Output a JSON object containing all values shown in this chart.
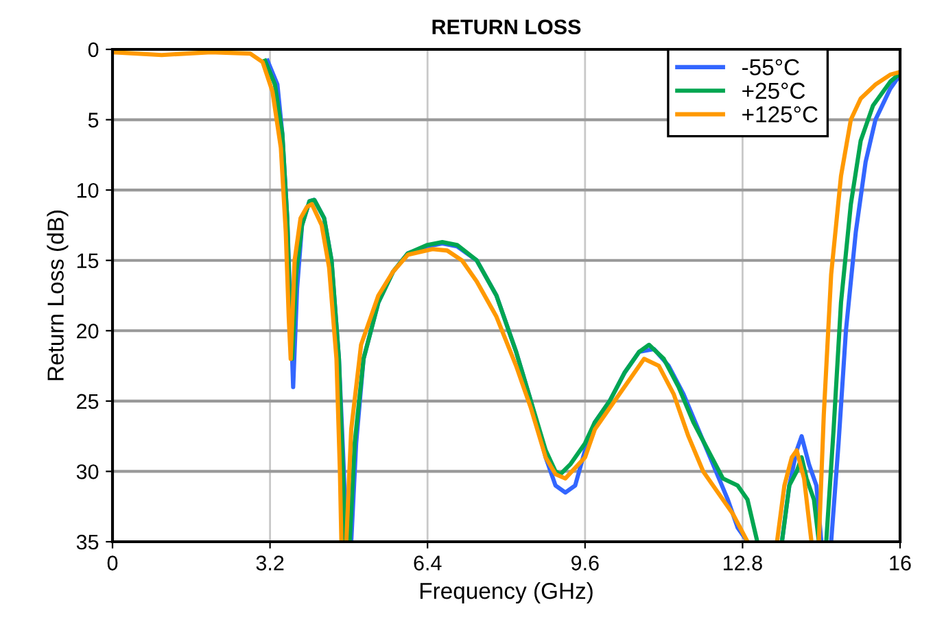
{
  "chart_data": {
    "type": "line",
    "title": "RETURN LOSS",
    "xlabel": "Frequency (GHz)",
    "ylabel": "Return Loss (dB)",
    "xlim": [
      0,
      16
    ],
    "xticks": [
      0,
      3.2,
      6.4,
      9.6,
      12.8,
      16
    ],
    "ylim": [
      35,
      0
    ],
    "yticks": [
      0,
      5,
      10,
      15,
      20,
      25,
      30,
      35
    ],
    "grid": true,
    "legend": "top right",
    "marker": "none",
    "line_style": "solid",
    "series": [
      {
        "name": "-55°C",
        "color": "#3366ff",
        "x": [
          3.15,
          3.35,
          3.45,
          3.55,
          3.62,
          3.67,
          3.75,
          3.85,
          4.0,
          4.1,
          4.3,
          4.45,
          4.6,
          4.7,
          4.75,
          4.8,
          4.85,
          4.95,
          5.1,
          5.4,
          5.7,
          6.0,
          6.4,
          6.7,
          7.0,
          7.4,
          7.8,
          8.2,
          8.5,
          8.8,
          9.0,
          9.2,
          9.4,
          9.6,
          9.8,
          10.1,
          10.4,
          10.7,
          11.0,
          11.3,
          11.6,
          11.9,
          12.2,
          12.5,
          12.7,
          12.9,
          13.05,
          13.6,
          13.75,
          13.9,
          14.0,
          14.15,
          14.3,
          14.4,
          14.5,
          14.6,
          14.75,
          14.9,
          15.1,
          15.3,
          15.5,
          15.8,
          16
        ],
        "values": [
          0.8,
          2.5,
          6,
          12,
          19,
          24,
          17,
          12.5,
          10.8,
          10.7,
          12,
          15,
          22,
          30,
          35,
          null,
          35,
          28,
          22,
          18,
          15.8,
          14.5,
          14,
          13.8,
          14,
          15,
          17.5,
          21.5,
          25,
          29,
          31,
          31.5,
          31,
          28.5,
          26.5,
          25,
          23,
          21.5,
          21.3,
          22.5,
          24.5,
          27,
          29.5,
          32,
          34,
          35,
          null,
          35,
          31,
          28.5,
          27.5,
          29.5,
          31,
          35,
          null,
          35,
          28,
          20,
          13,
          8,
          5,
          2.8,
          1.8
        ]
      },
      {
        "name": "+25°C",
        "color": "#00a651",
        "x": [
          3.1,
          3.3,
          3.45,
          3.55,
          3.6,
          3.65,
          3.73,
          3.85,
          4.0,
          4.1,
          4.3,
          4.45,
          4.6,
          4.68,
          4.72,
          4.77,
          4.82,
          4.92,
          5.1,
          5.4,
          5.7,
          6.0,
          6.4,
          6.7,
          7.0,
          7.4,
          7.8,
          8.2,
          8.5,
          8.8,
          9.0,
          9.1,
          9.3,
          9.6,
          9.8,
          10.1,
          10.4,
          10.7,
          10.9,
          11.2,
          11.5,
          11.8,
          12.1,
          12.4,
          12.7,
          12.9,
          13.1,
          13.2,
          13.6,
          13.75,
          13.9,
          14.0,
          14.1,
          14.25,
          14.35,
          14.45,
          14.5,
          14.65,
          14.8,
          15.0,
          15.2,
          15.45,
          15.8,
          16
        ],
        "values": [
          0.8,
          2.5,
          6,
          12,
          18,
          22,
          16,
          12.5,
          10.8,
          10.7,
          12,
          15,
          22,
          30,
          35,
          null,
          35,
          28,
          22,
          18,
          15.8,
          14.5,
          13.9,
          13.7,
          13.9,
          15,
          17.5,
          21.5,
          25,
          28.5,
          30,
          30.2,
          29.5,
          28,
          26.5,
          25,
          23,
          21.5,
          21,
          22,
          24,
          26.5,
          28.5,
          30.5,
          31,
          32,
          35,
          null,
          35,
          31,
          30,
          29,
          30.5,
          32,
          35,
          null,
          35,
          27,
          18,
          11,
          6.5,
          4,
          2.3,
          1.7
        ]
      },
      {
        "name": "+125°C",
        "color": "#ff9900",
        "x": [
          0,
          1,
          2,
          2.8,
          3.05,
          3.25,
          3.42,
          3.52,
          3.58,
          3.62,
          3.7,
          3.82,
          3.95,
          4.05,
          4.25,
          4.4,
          4.55,
          4.62,
          4.65,
          4.7,
          4.75,
          4.85,
          5.05,
          5.4,
          5.7,
          6.0,
          6.5,
          6.8,
          7.1,
          7.4,
          7.8,
          8.2,
          8.5,
          8.8,
          9.0,
          9.2,
          9.6,
          9.8,
          10.1,
          10.4,
          10.8,
          11.1,
          11.4,
          11.7,
          12.0,
          12.3,
          12.6,
          12.9,
          13.0,
          13.5,
          13.65,
          13.8,
          13.9,
          14.05,
          14.2,
          14.25,
          14.35,
          14.45,
          14.6,
          14.8,
          15.0,
          15.2,
          15.5,
          15.8,
          16
        ],
        "values": [
          0.2,
          0.4,
          0.2,
          0.3,
          0.9,
          3,
          7,
          13,
          19,
          22,
          15,
          12,
          11.2,
          11,
          12.5,
          15.5,
          22,
          30,
          35,
          null,
          35,
          27,
          21,
          17.5,
          15.8,
          14.6,
          14.2,
          14.3,
          15,
          16.5,
          19,
          22.5,
          25.5,
          29,
          30.2,
          30.5,
          29,
          27,
          25.5,
          24,
          22,
          22.5,
          24.5,
          27.5,
          30,
          31.5,
          33,
          35,
          null,
          35,
          31,
          29,
          28.5,
          30.5,
          35,
          null,
          35,
          26,
          16,
          9,
          5,
          3.5,
          2.5,
          1.8,
          1.6
        ]
      }
    ]
  }
}
